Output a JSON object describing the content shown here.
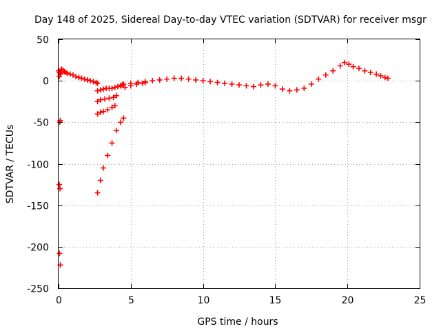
{
  "chart_data": {
    "type": "scatter",
    "title": "Day 148 of 2025, Sidereal Day-to-day VTEC variation (SDTVAR) for receiver msgr",
    "xlabel": "GPS time / hours",
    "ylabel": "SDTVAR / TECUs",
    "xlim": [
      0,
      25
    ],
    "ylim": [
      -250,
      50
    ],
    "xticks": [
      0,
      5,
      10,
      15,
      20,
      25
    ],
    "yticks": [
      -250,
      -200,
      -150,
      -100,
      -50,
      0,
      50
    ],
    "grid": true,
    "marker": "plus",
    "series": [
      {
        "name": "SDTVAR",
        "color": "#ff0000",
        "x": [
          0.0,
          0.05,
          0.1,
          0.15,
          0.05,
          0.08,
          0.12,
          0.05,
          0.1,
          0.07,
          0.12,
          0.2,
          0.3,
          0.4,
          0.5,
          0.6,
          0.8,
          1.0,
          1.2,
          1.4,
          1.6,
          1.8,
          2.0,
          2.2,
          2.4,
          2.6,
          2.7,
          2.7,
          2.9,
          3.1,
          3.4,
          3.7,
          4.0,
          4.3,
          4.5,
          2.7,
          2.9,
          3.1,
          3.4,
          3.7,
          3.9,
          2.7,
          2.9,
          3.2,
          3.5,
          3.8,
          4.0,
          2.7,
          2.9,
          3.1,
          3.3,
          3.5,
          3.7,
          3.9,
          4.1,
          4.3,
          4.4,
          4.3,
          4.6,
          5.0,
          5.4,
          5.8,
          6.0,
          4.5,
          5.0,
          5.5,
          6.0,
          6.5,
          7.0,
          7.5,
          8.0,
          8.5,
          9.0,
          9.5,
          10.0,
          10.5,
          11.0,
          11.5,
          12.0,
          12.5,
          13.0,
          13.5,
          14.0,
          14.5,
          15.0,
          15.5,
          16.0,
          16.5,
          17.0,
          17.5,
          18.0,
          18.5,
          19.0,
          19.5,
          19.8,
          20.1,
          20.4,
          20.8,
          21.2,
          21.6,
          22.0,
          22.3,
          22.6,
          22.8
        ],
        "y": [
          12,
          10,
          8,
          9,
          5,
          -50,
          -48,
          -125,
          -130,
          -208,
          -222,
          14,
          13,
          11,
          10,
          9,
          8,
          7,
          5,
          4,
          3,
          2,
          1,
          0,
          -1,
          -2,
          -3,
          -135,
          -120,
          -105,
          -90,
          -75,
          -60,
          -50,
          -45,
          -40,
          -38,
          -37,
          -35,
          -32,
          -30,
          -25,
          -23,
          -22,
          -21,
          -20,
          -18,
          -12,
          -11,
          -10,
          -9,
          -9,
          -9,
          -8,
          -7,
          -6,
          -5,
          -6,
          -8,
          -6,
          -4,
          -3,
          -2,
          -4,
          -3,
          -2,
          -1,
          0,
          1,
          2,
          3,
          3,
          2,
          1,
          0,
          -1,
          -2,
          -3,
          -4,
          -5,
          -6,
          -7,
          -5,
          -4,
          -6,
          -10,
          -12,
          -11,
          -9,
          -4,
          2,
          7,
          12,
          18,
          22,
          20,
          17,
          15,
          12,
          10,
          8,
          6,
          4,
          3
        ]
      }
    ]
  }
}
